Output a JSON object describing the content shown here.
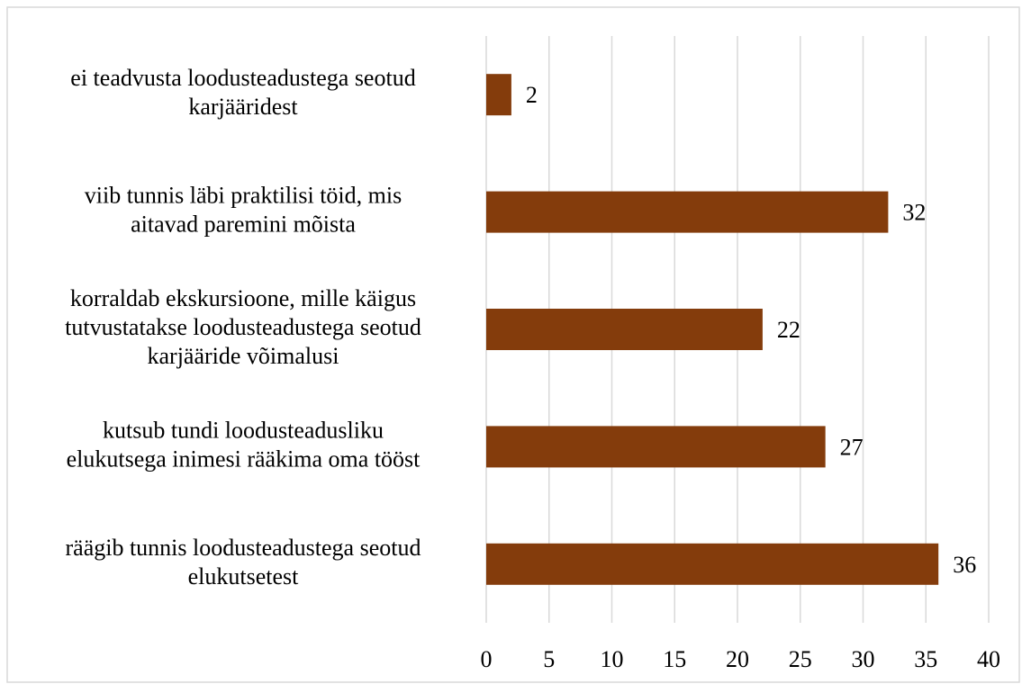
{
  "chart_data": {
    "type": "bar",
    "orientation": "horizontal",
    "categories": [
      "ei teadvusta loodusteadustega seotud\nkarjääridest",
      "viib tunnis läbi praktilisi töid, mis\naitavad paremini mõista",
      "korraldab ekskursioone, mille käigus\ntutvustatakse loodusteadustega seotud\nkarjääride võimalusi",
      "kutsub tundi loodusteadusliku\nelukutsega inimesi rääkima oma tööst",
      "räägib tunnis loodusteadustega seotud\nelukutsetest"
    ],
    "values": [
      2,
      32,
      22,
      27,
      36
    ],
    "color": "#843c0c",
    "xlim": [
      0,
      40
    ],
    "xticks": [
      0,
      5,
      10,
      15,
      20,
      25,
      30,
      35,
      40
    ],
    "grid": true
  }
}
